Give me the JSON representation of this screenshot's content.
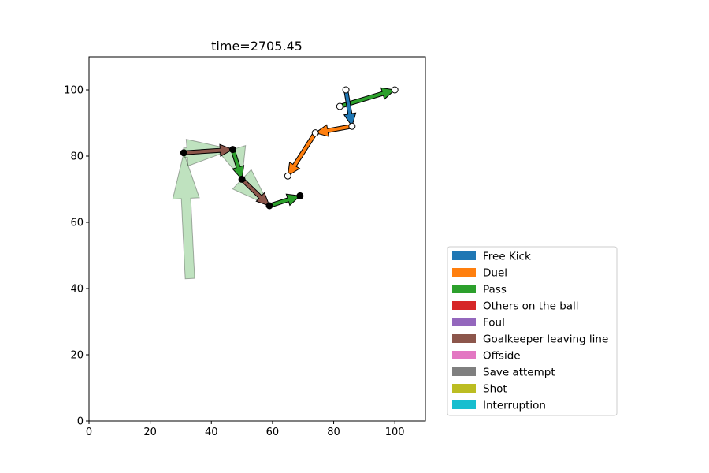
{
  "chart_data": {
    "type": "scatter",
    "title": "time=2705.45",
    "xlabel": "",
    "ylabel": "",
    "xlim": [
      0,
      110
    ],
    "ylim": [
      0,
      110
    ],
    "x_ticks": [
      0,
      20,
      40,
      60,
      80,
      100
    ],
    "y_ticks": [
      0,
      20,
      40,
      60,
      80,
      100
    ],
    "grid": false,
    "legend_placement": "lower-right-outside",
    "legend": [
      {
        "name": "Free Kick",
        "color": "#1f77b4"
      },
      {
        "name": "Duel",
        "color": "#ff7f0e"
      },
      {
        "name": "Pass",
        "color": "#2ca02c"
      },
      {
        "name": "Others on the ball",
        "color": "#d62728"
      },
      {
        "name": "Foul",
        "color": "#9467bd"
      },
      {
        "name": "Goalkeeper leaving line",
        "color": "#8c564b"
      },
      {
        "name": "Offside",
        "color": "#e377c2"
      },
      {
        "name": "Save attempt",
        "color": "#7f7f7f"
      },
      {
        "name": "Shot",
        "color": "#bcbd22"
      },
      {
        "name": "Interruption",
        "color": "#17becf"
      }
    ],
    "faded_events": [
      {
        "type": "Pass",
        "x0": 33,
        "y0": 43,
        "x1": 31,
        "y1": 81
      },
      {
        "type": "Pass",
        "x0": 31,
        "y0": 81,
        "x1": 47,
        "y1": 82
      },
      {
        "type": "Pass",
        "x0": 47,
        "y0": 82,
        "x1": 50,
        "y1": 73
      },
      {
        "type": "Pass",
        "x0": 50,
        "y0": 73,
        "x1": 59,
        "y1": 65
      }
    ],
    "team_a_events": [
      {
        "type": "Goalkeeper leaving line",
        "x0": 31,
        "y0": 81,
        "x1": 47,
        "y1": 82
      },
      {
        "type": "Pass",
        "x0": 47,
        "y0": 82,
        "x1": 50,
        "y1": 73
      },
      {
        "type": "Goalkeeper leaving line",
        "x0": 50,
        "y0": 73,
        "x1": 59,
        "y1": 65
      },
      {
        "type": "Pass",
        "x0": 59,
        "y0": 65,
        "x1": 69,
        "y1": 68
      }
    ],
    "team_a_points": [
      [
        31,
        81
      ],
      [
        47,
        82
      ],
      [
        50,
        73
      ],
      [
        59,
        65
      ],
      [
        69,
        68
      ]
    ],
    "team_b_events": [
      {
        "type": "Pass",
        "x0": 82,
        "y0": 95,
        "x1": 100,
        "y1": 100
      },
      {
        "type": "Free Kick",
        "x0": 84,
        "y0": 100,
        "x1": 86,
        "y1": 89
      },
      {
        "type": "Duel",
        "x0": 86,
        "y0": 89,
        "x1": 74,
        "y1": 87
      },
      {
        "type": "Duel",
        "x0": 74,
        "y0": 87,
        "x1": 65,
        "y1": 74
      }
    ],
    "team_b_points": [
      [
        82,
        95
      ],
      [
        100,
        100
      ],
      [
        84,
        100
      ],
      [
        86,
        89
      ],
      [
        74,
        87
      ],
      [
        65,
        74
      ]
    ]
  }
}
